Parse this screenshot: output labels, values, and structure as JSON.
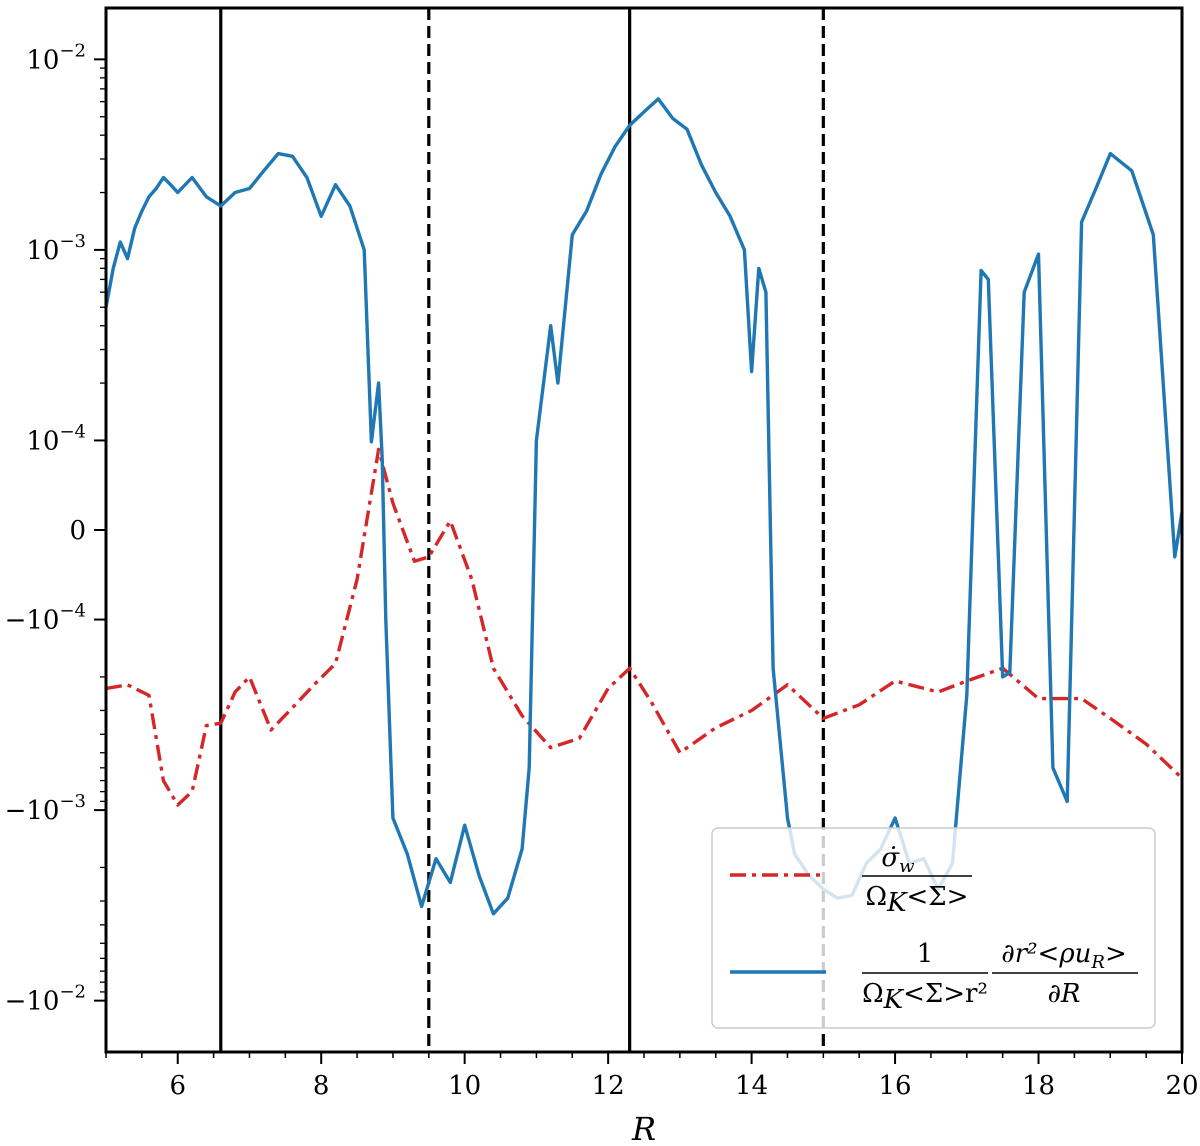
{
  "chart_data": {
    "type": "line",
    "xlabel": "R",
    "ylabel": "",
    "title": "",
    "xlim": [
      5,
      20
    ],
    "yscale": "symlog",
    "linthresh": 0.0001,
    "xticks": [
      6,
      8,
      10,
      12,
      14,
      16,
      18,
      20
    ],
    "xtick_labels": [
      "6",
      "8",
      "10",
      "12",
      "14",
      "16",
      "18",
      "20"
    ],
    "yticks": [
      0.01,
      0.001,
      0.0001,
      0,
      -0.0001,
      -0.001,
      -0.01
    ],
    "ytick_labels": [
      {
        "base": "10",
        "exp": "−2"
      },
      {
        "base": "10",
        "exp": "−3"
      },
      {
        "base": "10",
        "exp": "−4"
      },
      {
        "base": "0",
        "exp": ""
      },
      {
        "base": "−10",
        "exp": "−4"
      },
      {
        "base": "−10",
        "exp": "−3"
      },
      {
        "base": "−10",
        "exp": "−2"
      }
    ],
    "vlines": [
      {
        "x": 6.6,
        "style": "solid"
      },
      {
        "x": 9.5,
        "style": "dashed"
      },
      {
        "x": 12.3,
        "style": "solid"
      },
      {
        "x": 15.0,
        "style": "dashed"
      }
    ],
    "legend_placement": "lower-right",
    "series": [
      {
        "color": "#d62728",
        "style": "dashdot",
        "legend": {
          "num": "σ̇",
          "num_sub": "w",
          "den": "Ω",
          "den_sub": "K",
          "den_rest": "<Σ>"
        },
        "x": [
          5.0,
          5.3,
          5.6,
          5.8,
          6.0,
          6.2,
          6.4,
          6.6,
          6.8,
          7.0,
          7.3,
          7.6,
          7.9,
          8.2,
          8.5,
          8.8,
          9.0,
          9.3,
          9.5,
          9.8,
          10.1,
          10.4,
          10.8,
          11.2,
          11.6,
          12.0,
          12.3,
          12.6,
          13.0,
          13.5,
          14.0,
          14.5,
          15.0,
          15.5,
          16.0,
          16.6,
          17.0,
          17.5,
          18.0,
          18.6,
          19.0,
          19.5,
          20.0
        ],
        "y": [
          -0.00023,
          -0.00022,
          -0.00025,
          -0.0007,
          -0.00094,
          -0.0008,
          -0.00036,
          -0.00035,
          -0.00024,
          -0.0002,
          -0.00038,
          -0.00029,
          -0.00022,
          -0.00017,
          -5.5e-05,
          9e-05,
          3e-05,
          -3.5e-05,
          -3e-05,
          1e-05,
          -5.5e-05,
          -0.00018,
          -0.00032,
          -0.00047,
          -0.00042,
          -0.00023,
          -0.00018,
          -0.00027,
          -0.0005,
          -0.00037,
          -0.0003,
          -0.00022,
          -0.00033,
          -0.00028,
          -0.00021,
          -0.00024,
          -0.00021,
          -0.00018,
          -0.00026,
          -0.00026,
          -0.00033,
          -0.00045,
          -0.00068
        ]
      },
      {
        "color": "#1f77b4",
        "style": "solid",
        "legend": {
          "num": "1",
          "den": "Ω",
          "den_sub": "K",
          "den_rest": "<Σ>r²",
          "num2": "∂r²<ρu",
          "num2_sub": "R",
          "num2_end": ">",
          "den2": "∂R"
        },
        "x": [
          5.0,
          5.1,
          5.2,
          5.3,
          5.4,
          5.5,
          5.6,
          5.7,
          5.8,
          5.9,
          6.0,
          6.2,
          6.4,
          6.6,
          6.8,
          7.0,
          7.2,
          7.4,
          7.6,
          7.8,
          8.0,
          8.2,
          8.4,
          8.6,
          8.7,
          8.8,
          8.85,
          8.9,
          9.0,
          9.2,
          9.4,
          9.6,
          9.8,
          10.0,
          10.2,
          10.4,
          10.6,
          10.8,
          10.9,
          11.0,
          11.2,
          11.3,
          11.5,
          11.7,
          11.9,
          12.1,
          12.3,
          12.5,
          12.7,
          12.9,
          13.1,
          13.3,
          13.5,
          13.7,
          13.9,
          14.0,
          14.1,
          14.2,
          14.3,
          14.5,
          14.6,
          14.8,
          15.0,
          15.2,
          15.4,
          15.6,
          15.8,
          16.0,
          16.2,
          16.4,
          16.6,
          16.8,
          17.0,
          17.2,
          17.3,
          17.5,
          17.6,
          17.8,
          18.0,
          18.2,
          18.4,
          18.6,
          18.8,
          19.0,
          19.3,
          19.6,
          19.9,
          20.0
        ],
        "y": [
          0.0005,
          0.0008,
          0.0011,
          0.0009,
          0.0013,
          0.0016,
          0.0019,
          0.0021,
          0.0024,
          0.0022,
          0.002,
          0.0024,
          0.0019,
          0.0017,
          0.002,
          0.0021,
          0.0026,
          0.0032,
          0.0031,
          0.0024,
          0.0015,
          0.0022,
          0.0017,
          0.001,
          9.85e-05,
          0.0002,
          8e-05,
          -0.0001,
          -0.0011,
          -0.0017,
          -0.0032,
          -0.0018,
          -0.0024,
          -0.0012,
          -0.0022,
          -0.0035,
          -0.0029,
          -0.0016,
          -0.0006,
          0.0001,
          0.0004,
          0.0002,
          0.0012,
          0.0016,
          0.0025,
          0.0035,
          0.0045,
          0.0053,
          0.0062,
          0.0049,
          0.0043,
          0.0028,
          0.002,
          0.0015,
          0.001,
          0.00023,
          0.0008,
          0.0006,
          -0.00018,
          -0.0011,
          -0.0017,
          -0.0022,
          -0.0026,
          -0.0029,
          -0.0028,
          -0.0019,
          -0.0016,
          -0.0011,
          -0.0019,
          -0.0018,
          -0.0026,
          -0.0019,
          -0.00025,
          0.00078,
          0.0007,
          -0.0002,
          -0.00019,
          0.0006,
          0.00095,
          -0.0006,
          -0.0009,
          0.0014,
          0.0021,
          0.0032,
          0.0026,
          0.0012,
          -3e-05,
          2e-05
        ]
      }
    ]
  }
}
